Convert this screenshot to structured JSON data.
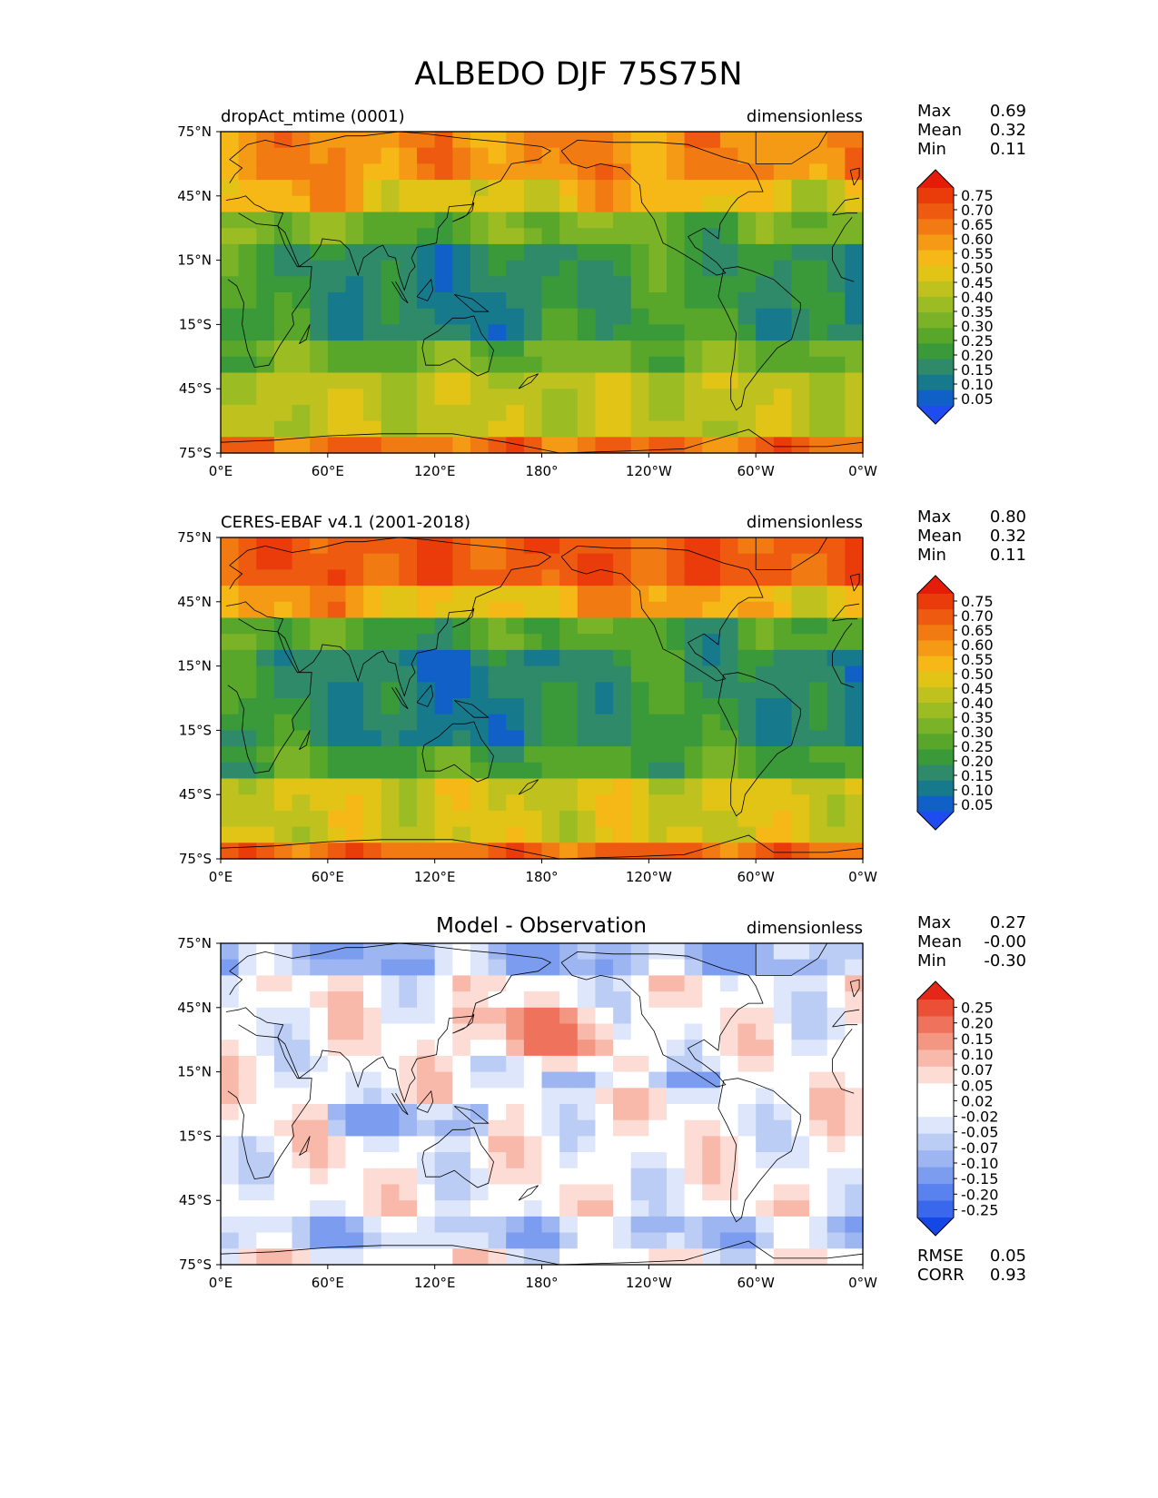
{
  "figure": {
    "title": "ALBEDO DJF 75S75N"
  },
  "colors": {
    "seq_palette": [
      "#1f4cf0",
      "#1060c8",
      "#167a8c",
      "#2f8a6a",
      "#3a9a3a",
      "#58a62a",
      "#7ab327",
      "#9cbc24",
      "#bfc21e",
      "#e2c417",
      "#f5b817",
      "#f59a15",
      "#f27a12",
      "#ee5a0f",
      "#ea3b0b",
      "#e51d08"
    ],
    "div_palette": [
      "#1447e6",
      "#3a68ec",
      "#5a82ee",
      "#7b9cef",
      "#9db5f1",
      "#bccdf5",
      "#dde6fa",
      "#ffffff",
      "#ffffff",
      "#fcdcd4",
      "#f8b8aa",
      "#f39682",
      "#ef735c",
      "#eb5037",
      "#e5271a"
    ],
    "coastline": "#000000"
  },
  "chart_data": [
    {
      "type": "filled-contour-map",
      "panel": "top",
      "title": "dropAct_mtime (0001)",
      "units": "dimensionless",
      "stats": [
        {
          "label": "Max",
          "value": "0.69"
        },
        {
          "label": "Mean",
          "value": "0.32"
        },
        {
          "label": "Min",
          "value": "0.11"
        }
      ],
      "xlabel_ticks": [
        "0°E",
        "60°E",
        "120°E",
        "180°",
        "120°W",
        "60°W",
        "0°W"
      ],
      "ylabel_ticks": [
        "75°N",
        "45°N",
        "15°N",
        "15°S",
        "45°S",
        "75°S"
      ],
      "xlim": [
        0,
        360
      ],
      "ylim": [
        -75,
        75
      ],
      "colorbar_ticks": [
        "0.75",
        "0.70",
        "0.65",
        "0.60",
        "0.55",
        "0.50",
        "0.45",
        "0.40",
        "0.35",
        "0.30",
        "0.25",
        "0.20",
        "0.15",
        "0.10",
        "0.05"
      ],
      "field": {
        "equator": 0.22,
        "subtropics": 0.33,
        "midlat_south": 0.45,
        "midlat_north": 0.55,
        "high_north": 0.62,
        "polar_south": 0.66
      }
    },
    {
      "type": "filled-contour-map",
      "panel": "middle",
      "title": "CERES-EBAF v4.1 (2001-2018)",
      "units": "dimensionless",
      "stats": [
        {
          "label": "Max",
          "value": "0.80"
        },
        {
          "label": "Mean",
          "value": "0.32"
        },
        {
          "label": "Min",
          "value": "0.11"
        }
      ],
      "xlabel_ticks": [
        "0°E",
        "60°E",
        "120°E",
        "180°",
        "120°W",
        "60°W",
        "0°W"
      ],
      "ylabel_ticks": [
        "75°N",
        "45°N",
        "15°N",
        "15°S",
        "45°S",
        "75°S"
      ],
      "xlim": [
        0,
        360
      ],
      "ylim": [
        -75,
        75
      ],
      "colorbar_ticks": [
        "0.75",
        "0.70",
        "0.65",
        "0.60",
        "0.55",
        "0.50",
        "0.45",
        "0.40",
        "0.35",
        "0.30",
        "0.25",
        "0.20",
        "0.15",
        "0.10",
        "0.05"
      ],
      "field": {
        "equator": 0.2,
        "subtropics": 0.28,
        "midlat_south": 0.48,
        "midlat_north": 0.58,
        "high_north": 0.7,
        "polar_south": 0.68
      }
    },
    {
      "type": "filled-contour-map",
      "panel": "bottom",
      "title": "Model - Observation",
      "units": "dimensionless",
      "stats": [
        {
          "label": "Max",
          "value": "0.27"
        },
        {
          "label": "Mean",
          "value": "-0.00"
        },
        {
          "label": "Min",
          "value": "-0.30"
        }
      ],
      "extra_stats": [
        {
          "label": "RMSE",
          "value": "0.05"
        },
        {
          "label": "CORR",
          "value": "0.93"
        }
      ],
      "xlabel_ticks": [
        "0°E",
        "60°E",
        "120°E",
        "180°",
        "120°W",
        "60°W",
        "0°W"
      ],
      "ylabel_ticks": [
        "75°N",
        "45°N",
        "15°N",
        "15°S",
        "45°S",
        "75°S"
      ],
      "xlim": [
        0,
        360
      ],
      "ylim": [
        -75,
        75
      ],
      "colorbar_ticks": [
        "0.25",
        "0.20",
        "0.15",
        "0.10",
        "0.07",
        "0.05",
        "0.02",
        "-0.02",
        "-0.05",
        "-0.07",
        "-0.10",
        "-0.15",
        "-0.20",
        "-0.25"
      ]
    }
  ]
}
